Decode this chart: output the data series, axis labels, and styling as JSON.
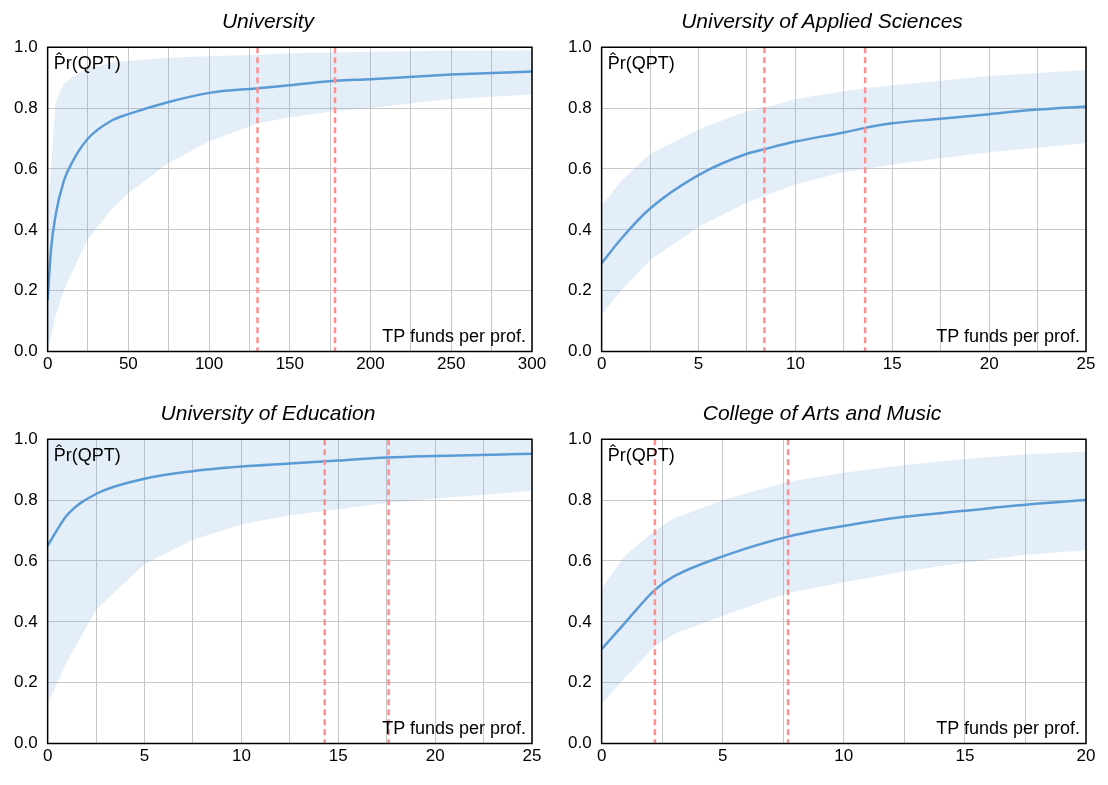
{
  "chart_data": [
    {
      "type": "line",
      "title": "University",
      "xlabel": "TP funds per prof.",
      "ylabel": "P̂r(QPT)",
      "x": [
        0,
        2,
        5,
        10,
        15,
        25,
        40,
        50,
        75,
        100,
        130,
        150,
        178,
        200,
        250,
        300
      ],
      "series": [
        {
          "color": "#5b9bd5",
          "values": [
            0.17,
            0.33,
            0.45,
            0.56,
            0.62,
            0.7,
            0.76,
            0.78,
            0.82,
            0.85,
            0.865,
            0.875,
            0.89,
            0.895,
            0.91,
            0.92
          ],
          "lower": [
            0.0,
            0.05,
            0.12,
            0.2,
            0.26,
            0.37,
            0.47,
            0.52,
            0.62,
            0.69,
            0.75,
            0.77,
            0.79,
            0.8,
            0.83,
            0.845
          ],
          "upper": [
            0.45,
            0.6,
            0.82,
            0.88,
            0.9,
            0.93,
            0.95,
            0.955,
            0.965,
            0.97,
            0.975,
            0.98,
            0.983,
            0.985,
            0.988,
            0.99
          ]
        }
      ],
      "xlim": [
        0,
        300
      ],
      "xticks": [
        0,
        {
          "value": 25,
          "label": null
        },
        50,
        {
          "value": 75,
          "label": null
        },
        100,
        {
          "value": 125,
          "label": null
        },
        150,
        {
          "value": 175,
          "label": null
        },
        200,
        {
          "value": 225,
          "label": null
        },
        250,
        {
          "value": 275,
          "label": null
        },
        300
      ],
      "ylim": [
        0,
        1
      ],
      "yticks": [
        {
          "value": 0,
          "label": "0.0"
        },
        {
          "value": 0.2,
          "label": "0.2"
        },
        {
          "value": 0.4,
          "label": "0.4"
        },
        {
          "value": 0.6,
          "label": "0.6"
        },
        {
          "value": 0.8,
          "label": "0.8"
        },
        {
          "value": 1,
          "label": "1.0"
        }
      ],
      "ref_lines": [
        {
          "axis": "x",
          "value": 130,
          "color": "#ff8f8f",
          "line_style": "dashed"
        },
        {
          "axis": "x",
          "value": 178,
          "color": "#ff8f8f",
          "line_style": "dashed"
        }
      ],
      "grid": true,
      "legend": false,
      "marker": "none",
      "line_style": "solid"
    },
    {
      "type": "line",
      "title": "University of Applied Sciences",
      "xlabel": "TP funds per prof.",
      "ylabel": "P̂r(QPT)",
      "x": [
        0,
        1,
        2.5,
        5,
        7.5,
        8.4,
        10,
        12.5,
        13.6,
        15,
        17.5,
        20,
        22.5,
        25
      ],
      "series": [
        {
          "color": "#5b9bd5",
          "values": [
            0.29,
            0.37,
            0.47,
            0.58,
            0.65,
            0.665,
            0.69,
            0.72,
            0.735,
            0.75,
            0.765,
            0.78,
            0.795,
            0.805
          ],
          "lower": [
            0.12,
            0.2,
            0.3,
            0.41,
            0.49,
            0.51,
            0.55,
            0.59,
            0.6,
            0.615,
            0.635,
            0.655,
            0.67,
            0.685
          ],
          "upper": [
            0.48,
            0.56,
            0.65,
            0.73,
            0.79,
            0.8,
            0.83,
            0.855,
            0.865,
            0.875,
            0.89,
            0.905,
            0.915,
            0.925
          ]
        }
      ],
      "xlim": [
        0,
        25
      ],
      "xticks": [
        0,
        {
          "value": 2.5,
          "label": null
        },
        5,
        {
          "value": 7.5,
          "label": null
        },
        10,
        {
          "value": 12.5,
          "label": null
        },
        15,
        {
          "value": 17.5,
          "label": null
        },
        20,
        {
          "value": 22.5,
          "label": null
        },
        25
      ],
      "ylim": [
        0,
        1
      ],
      "yticks": [
        {
          "value": 0,
          "label": "0.0"
        },
        {
          "value": 0.2,
          "label": "0.2"
        },
        {
          "value": 0.4,
          "label": "0.4"
        },
        {
          "value": 0.6,
          "label": "0.6"
        },
        {
          "value": 0.8,
          "label": "0.8"
        },
        {
          "value": 1,
          "label": "1.0"
        }
      ],
      "ref_lines": [
        {
          "axis": "x",
          "value": 8.4,
          "color": "#ff8f8f",
          "line_style": "dashed"
        },
        {
          "axis": "x",
          "value": 13.6,
          "color": "#ff8f8f",
          "line_style": "dashed"
        }
      ],
      "grid": true,
      "legend": false,
      "marker": "none",
      "line_style": "solid"
    },
    {
      "type": "line",
      "title": "University of Education",
      "xlabel": "TP funds per prof.",
      "ylabel": "P̂r(QPT)",
      "x": [
        0,
        1,
        2.5,
        5,
        7.5,
        10,
        12.5,
        15,
        17.5,
        20,
        25
      ],
      "series": [
        {
          "color": "#5b9bd5",
          "values": [
            0.65,
            0.75,
            0.82,
            0.87,
            0.895,
            0.91,
            0.92,
            0.93,
            0.94,
            0.945,
            0.952
          ],
          "lower": [
            0.13,
            0.27,
            0.44,
            0.59,
            0.67,
            0.72,
            0.75,
            0.77,
            0.79,
            0.805,
            0.83
          ],
          "upper": [
            1,
            1,
            1,
            1,
            1,
            1,
            1,
            1,
            1,
            1,
            1
          ]
        }
      ],
      "xlim": [
        0,
        25
      ],
      "xticks": [
        0,
        {
          "value": 2.5,
          "label": null
        },
        5,
        {
          "value": 7.5,
          "label": null
        },
        10,
        {
          "value": 12.5,
          "label": null
        },
        15,
        {
          "value": 17.5,
          "label": null
        },
        20,
        {
          "value": 22.5,
          "label": null
        },
        25
      ],
      "ylim": [
        0,
        1
      ],
      "yticks": [
        {
          "value": 0,
          "label": "0.0"
        },
        {
          "value": 0.2,
          "label": "0.2"
        },
        {
          "value": 0.4,
          "label": "0.4"
        },
        {
          "value": 0.6,
          "label": "0.6"
        },
        {
          "value": 0.8,
          "label": "0.8"
        },
        {
          "value": 1,
          "label": "1.0"
        }
      ],
      "ref_lines": [
        {
          "axis": "x",
          "value": 14.3,
          "color": "#ff8f8f",
          "line_style": "dashed"
        },
        {
          "axis": "x",
          "value": 17.6,
          "color": "#ff8f8f",
          "line_style": "dashed"
        }
      ],
      "grid": true,
      "legend": false,
      "marker": "none",
      "line_style": "solid"
    },
    {
      "type": "line",
      "title": "College of Arts and Music",
      "xlabel": "TP funds per prof.",
      "ylabel": "P̂r(QPT)",
      "x": [
        0,
        1,
        2.2,
        3,
        5,
        7.7,
        10,
        12.5,
        15,
        17.5,
        20
      ],
      "series": [
        {
          "color": "#5b9bd5",
          "values": [
            0.31,
            0.4,
            0.505,
            0.55,
            0.615,
            0.68,
            0.715,
            0.745,
            0.765,
            0.785,
            0.8
          ],
          "lower": [
            0.13,
            0.22,
            0.32,
            0.36,
            0.42,
            0.495,
            0.53,
            0.565,
            0.595,
            0.62,
            0.635
          ],
          "upper": [
            0.51,
            0.62,
            0.7,
            0.74,
            0.8,
            0.86,
            0.89,
            0.915,
            0.935,
            0.95,
            0.96
          ]
        }
      ],
      "xlim": [
        0,
        20
      ],
      "xticks": [
        0,
        {
          "value": 2.5,
          "label": null
        },
        5,
        {
          "value": 7.5,
          "label": null
        },
        10,
        {
          "value": 12.5,
          "label": null
        },
        15,
        {
          "value": 17.5,
          "label": null
        },
        20
      ],
      "ylim": [
        0,
        1
      ],
      "yticks": [
        {
          "value": 0,
          "label": "0.0"
        },
        {
          "value": 0.2,
          "label": "0.2"
        },
        {
          "value": 0.4,
          "label": "0.4"
        },
        {
          "value": 0.6,
          "label": "0.6"
        },
        {
          "value": 0.8,
          "label": "0.8"
        },
        {
          "value": 1,
          "label": "1.0"
        }
      ],
      "ref_lines": [
        {
          "axis": "x",
          "value": 2.2,
          "color": "#ff8f8f",
          "line_style": "dashed"
        },
        {
          "axis": "x",
          "value": 7.7,
          "color": "#ff8f8f",
          "line_style": "dashed"
        }
      ],
      "grid": true,
      "legend": false,
      "marker": "none",
      "line_style": "solid"
    }
  ]
}
